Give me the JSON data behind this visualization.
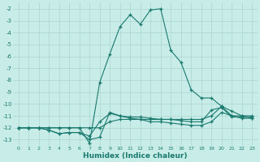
{
  "xlabel": "Humidex (Indice chaleur)",
  "bg_color": "#c8ece8",
  "grid_color": "#b0d8d4",
  "line_color": "#1a7a6e",
  "xlim": [
    -0.5,
    23.5
  ],
  "ylim": [
    -13.5,
    -1.5
  ],
  "xticks": [
    0,
    1,
    2,
    3,
    4,
    5,
    6,
    7,
    8,
    9,
    10,
    11,
    12,
    13,
    14,
    15,
    16,
    17,
    18,
    19,
    20,
    21,
    22,
    23
  ],
  "yticks": [
    -2,
    -3,
    -4,
    -5,
    -6,
    -7,
    -8,
    -9,
    -10,
    -11,
    -12,
    -13
  ],
  "series": [
    {
      "x": [
        0,
        1,
        2,
        3,
        4,
        5,
        6,
        7,
        8,
        9,
        10,
        11,
        12,
        13,
        14,
        15,
        16,
        17,
        18,
        19,
        20,
        21,
        22,
        23
      ],
      "y": [
        -12,
        -12,
        -12,
        -12,
        -12,
        -12,
        -12,
        -13.3,
        -8.2,
        -5.8,
        -3.5,
        -2.5,
        -3.3,
        -2.1,
        -2.0,
        -5.5,
        -6.5,
        -8.8,
        -9.5,
        -9.5,
        -10.2,
        -10.6,
        -11.0,
        -11.1
      ]
    },
    {
      "x": [
        0,
        1,
        2,
        3,
        4,
        5,
        6,
        7,
        8,
        9,
        10,
        11,
        12,
        13,
        14,
        15,
        16,
        17,
        18,
        19,
        20,
        21,
        22,
        23
      ],
      "y": [
        -12,
        -12,
        -12,
        -12,
        -12,
        -12,
        -12,
        -12,
        -12,
        -11.5,
        -11.3,
        -11.3,
        -11.3,
        -11.3,
        -11.3,
        -11.3,
        -11.3,
        -11.3,
        -11.3,
        -11.0,
        -10.2,
        -11.0,
        -11.0,
        -11.0
      ]
    },
    {
      "x": [
        0,
        1,
        2,
        3,
        4,
        5,
        6,
        7,
        8,
        9,
        10,
        11,
        12,
        13,
        14,
        15,
        16,
        17,
        18,
        19,
        20,
        21,
        22,
        23
      ],
      "y": [
        -12,
        -12,
        -12,
        -12.2,
        -12.5,
        -12.4,
        -12.4,
        -12.7,
        -11.5,
        -10.8,
        -11.0,
        -11.1,
        -11.1,
        -11.2,
        -11.3,
        -11.3,
        -11.4,
        -11.5,
        -11.5,
        -10.5,
        -10.3,
        -11.1,
        -11.1,
        -11.2
      ]
    },
    {
      "x": [
        0,
        1,
        2,
        3,
        4,
        5,
        6,
        7,
        8,
        9,
        10,
        11,
        12,
        13,
        14,
        15,
        16,
        17,
        18,
        19,
        20,
        21,
        22,
        23
      ],
      "y": [
        -12,
        -12,
        -12,
        -12.2,
        -12.5,
        -12.4,
        -12.4,
        -13.0,
        -12.8,
        -10.7,
        -11.0,
        -11.2,
        -11.3,
        -11.5,
        -11.5,
        -11.6,
        -11.7,
        -11.8,
        -11.8,
        -11.5,
        -10.7,
        -11.0,
        -11.2,
        -11.2
      ]
    }
  ]
}
